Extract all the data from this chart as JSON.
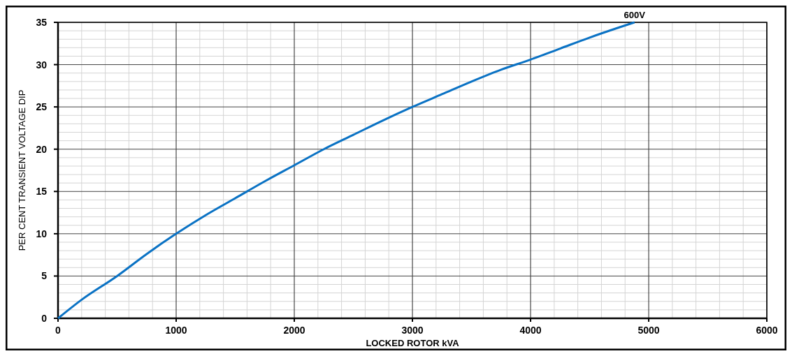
{
  "chart_data": {
    "type": "line",
    "xlabel": "LOCKED ROTOR kVA",
    "ylabel": "PER CENT TRANSIENT VOLTAGE DIP",
    "xlim": [
      0,
      6000
    ],
    "xticks": [
      0,
      1000,
      2000,
      3000,
      4000,
      5000,
      6000
    ],
    "ylim": [
      0,
      35
    ],
    "yticks": [
      0,
      5,
      10,
      15,
      20,
      25,
      30,
      35
    ],
    "grid": true,
    "series": [
      {
        "name": "600V",
        "color": "#0a72c4",
        "x": [
          0,
          200,
          500,
          750,
          1000,
          1250,
          1500,
          1750,
          2000,
          2250,
          2500,
          2750,
          3000,
          3250,
          3500,
          3750,
          4000,
          4250,
          4500,
          4750,
          4880
        ],
        "values": [
          0,
          2.2,
          5,
          7.6,
          10,
          12.2,
          14.2,
          16.2,
          18.1,
          20,
          21.7,
          23.4,
          25,
          26.5,
          28,
          29.4,
          30.6,
          31.9,
          33.2,
          34.4,
          35
        ]
      }
    ]
  }
}
